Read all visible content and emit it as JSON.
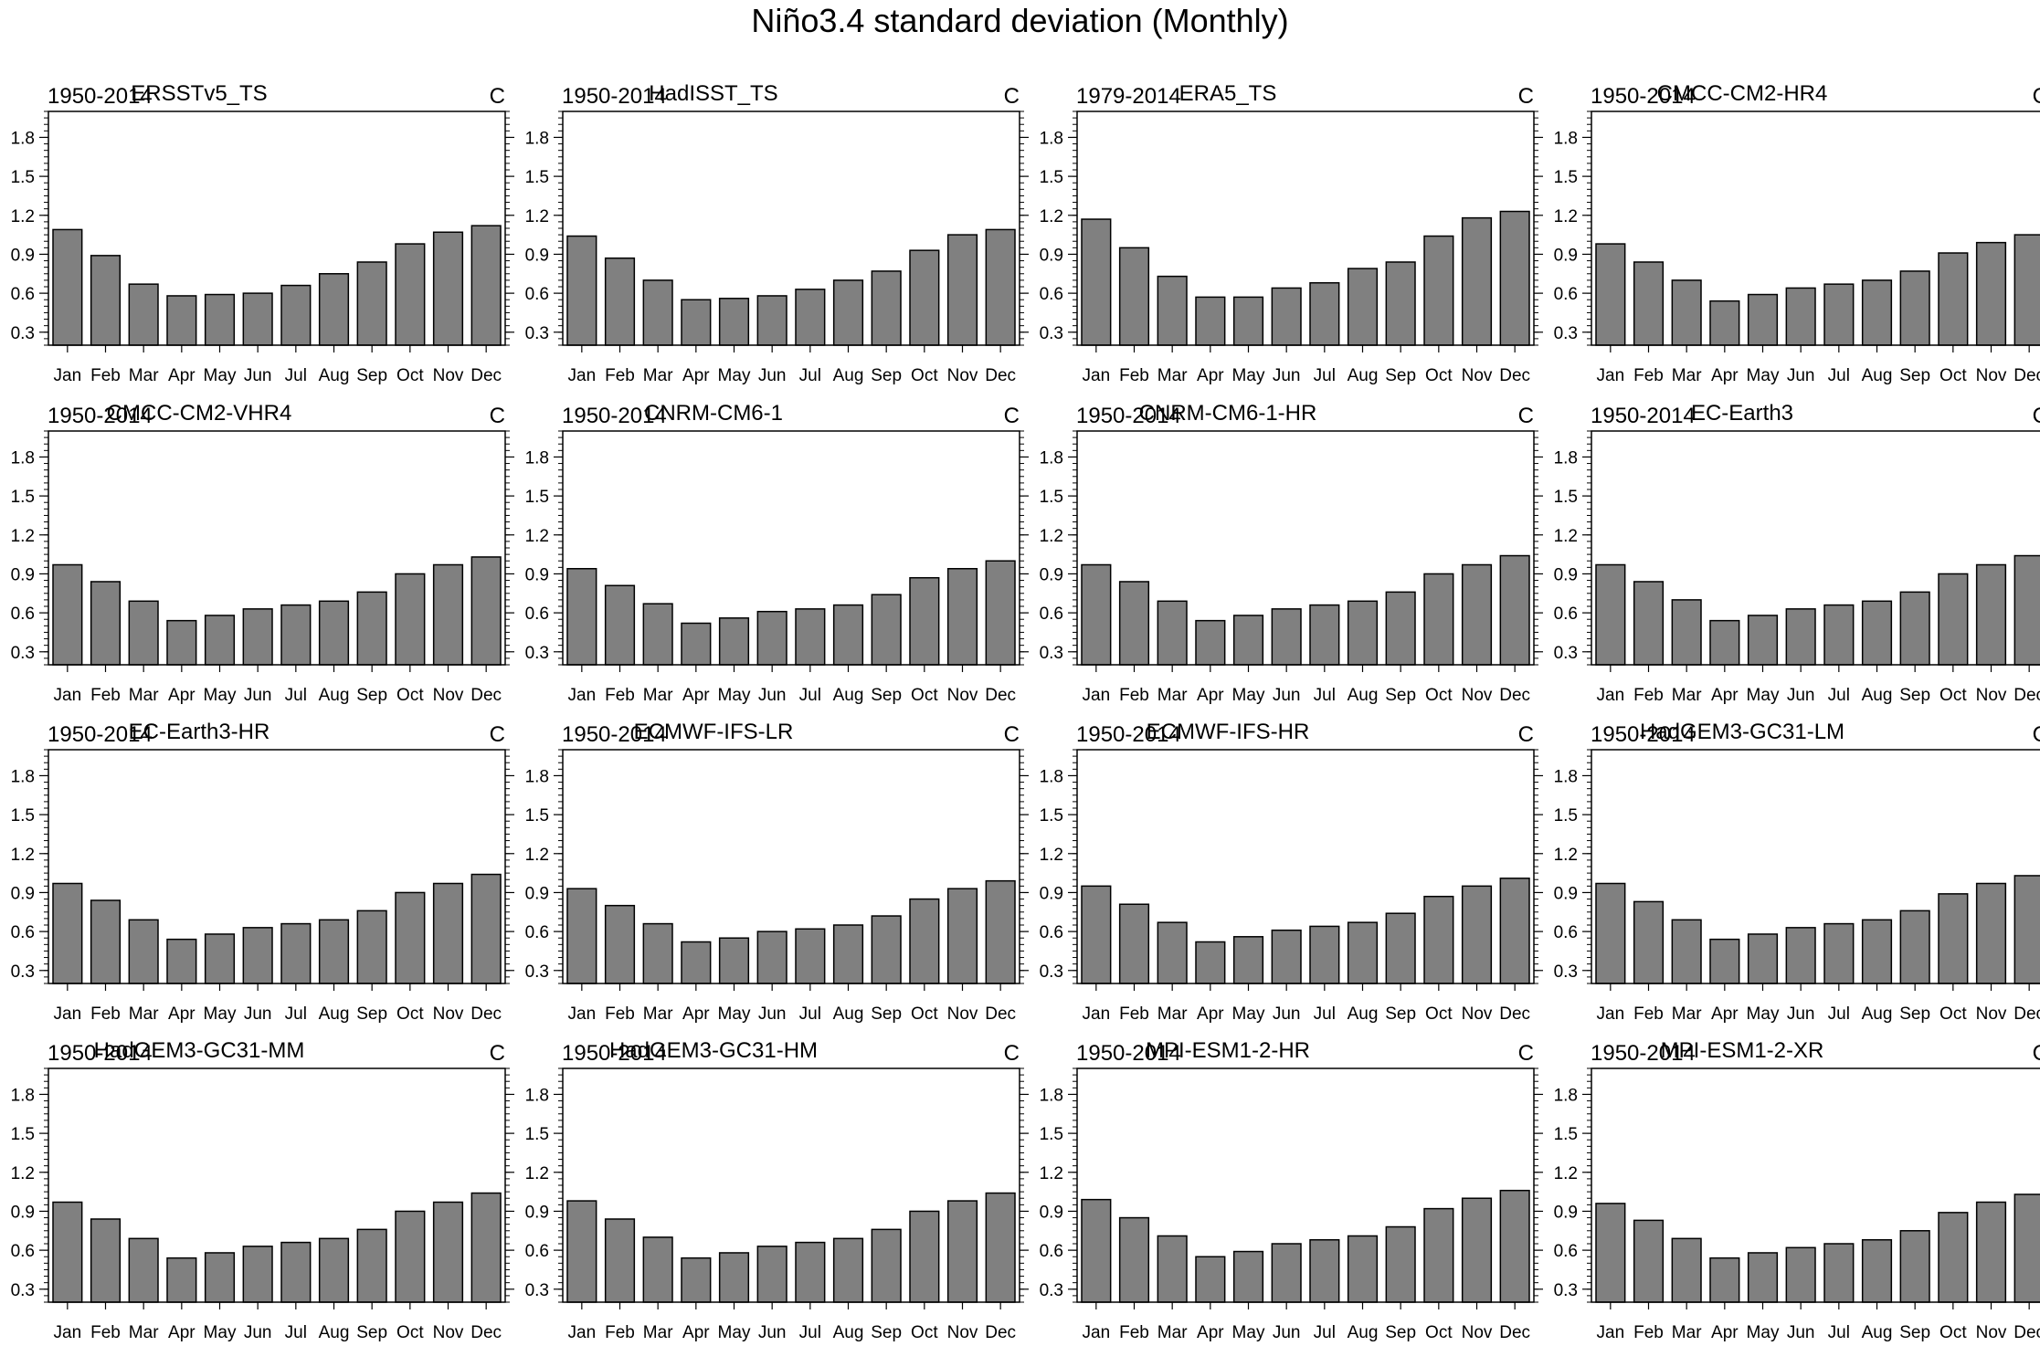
{
  "title": "Niño3.4 standard deviation (Monthly)",
  "style": {
    "bar_fill": "#808080",
    "bar_stroke": "#000000"
  },
  "chart_data": [
    {
      "type": "bar",
      "left_label": "1950-2014",
      "title": "ERSSTv5_TS",
      "units": "C",
      "categories": [
        "Jan",
        "Feb",
        "Mar",
        "Apr",
        "May",
        "Jun",
        "Jul",
        "Aug",
        "Sep",
        "Oct",
        "Nov",
        "Dec"
      ],
      "values": [
        1.09,
        0.89,
        0.67,
        0.58,
        0.59,
        0.6,
        0.66,
        0.75,
        0.84,
        0.98,
        1.07,
        1.12
      ],
      "yticks": [
        0.3,
        0.6,
        0.9,
        1.2,
        1.5,
        1.8
      ],
      "ylim": [
        0.2,
        2.0
      ]
    },
    {
      "type": "bar",
      "left_label": "1950-2014",
      "title": "HadISST_TS",
      "units": "C",
      "categories": [
        "Jan",
        "Feb",
        "Mar",
        "Apr",
        "May",
        "Jun",
        "Jul",
        "Aug",
        "Sep",
        "Oct",
        "Nov",
        "Dec"
      ],
      "values": [
        1.04,
        0.87,
        0.7,
        0.55,
        0.56,
        0.58,
        0.63,
        0.7,
        0.77,
        0.93,
        1.05,
        1.09
      ],
      "yticks": [
        0.3,
        0.6,
        0.9,
        1.2,
        1.5,
        1.8
      ],
      "ylim": [
        0.2,
        2.0
      ]
    },
    {
      "type": "bar",
      "left_label": "1979-2014",
      "title": "ERA5_TS",
      "units": "C",
      "categories": [
        "Jan",
        "Feb",
        "Mar",
        "Apr",
        "May",
        "Jun",
        "Jul",
        "Aug",
        "Sep",
        "Oct",
        "Nov",
        "Dec"
      ],
      "values": [
        1.17,
        0.95,
        0.73,
        0.57,
        0.57,
        0.64,
        0.68,
        0.79,
        0.84,
        1.04,
        1.18,
        1.23
      ],
      "yticks": [
        0.3,
        0.6,
        0.9,
        1.2,
        1.5,
        1.8
      ],
      "ylim": [
        0.2,
        2.0
      ]
    },
    {
      "type": "bar",
      "left_label": "1950-2014",
      "title": "CMCC-CM2-HR4",
      "units": "C",
      "categories": [
        "Jan",
        "Feb",
        "Mar",
        "Apr",
        "May",
        "Jun",
        "Jul",
        "Aug",
        "Sep",
        "Oct",
        "Nov",
        "Dec"
      ],
      "values": [
        0.98,
        0.84,
        0.7,
        0.54,
        0.59,
        0.64,
        0.67,
        0.7,
        0.77,
        0.91,
        0.99,
        1.05
      ],
      "yticks": [
        0.3,
        0.6,
        0.9,
        1.2,
        1.5,
        1.8
      ],
      "ylim": [
        0.2,
        2.0
      ]
    },
    {
      "type": "bar",
      "left_label": "1950-2014",
      "title": "CMCC-CM2-VHR4",
      "units": "C",
      "categories": [
        "Jan",
        "Feb",
        "Mar",
        "Apr",
        "May",
        "Jun",
        "Jul",
        "Aug",
        "Sep",
        "Oct",
        "Nov",
        "Dec"
      ],
      "values": [
        0.97,
        0.84,
        0.69,
        0.54,
        0.58,
        0.63,
        0.66,
        0.69,
        0.76,
        0.9,
        0.97,
        1.03
      ],
      "yticks": [
        0.3,
        0.6,
        0.9,
        1.2,
        1.5,
        1.8
      ],
      "ylim": [
        0.2,
        2.0
      ]
    },
    {
      "type": "bar",
      "left_label": "1950-2014",
      "title": "CNRM-CM6-1",
      "units": "C",
      "categories": [
        "Jan",
        "Feb",
        "Mar",
        "Apr",
        "May",
        "Jun",
        "Jul",
        "Aug",
        "Sep",
        "Oct",
        "Nov",
        "Dec"
      ],
      "values": [
        0.94,
        0.81,
        0.67,
        0.52,
        0.56,
        0.61,
        0.63,
        0.66,
        0.74,
        0.87,
        0.94,
        1.0
      ],
      "yticks": [
        0.3,
        0.6,
        0.9,
        1.2,
        1.5,
        1.8
      ],
      "ylim": [
        0.2,
        2.0
      ]
    },
    {
      "type": "bar",
      "left_label": "1950-2014",
      "title": "CNRM-CM6-1-HR",
      "units": "C",
      "categories": [
        "Jan",
        "Feb",
        "Mar",
        "Apr",
        "May",
        "Jun",
        "Jul",
        "Aug",
        "Sep",
        "Oct",
        "Nov",
        "Dec"
      ],
      "values": [
        0.97,
        0.84,
        0.69,
        0.54,
        0.58,
        0.63,
        0.66,
        0.69,
        0.76,
        0.9,
        0.97,
        1.04
      ],
      "yticks": [
        0.3,
        0.6,
        0.9,
        1.2,
        1.5,
        1.8
      ],
      "ylim": [
        0.2,
        2.0
      ]
    },
    {
      "type": "bar",
      "left_label": "1950-2014",
      "title": "EC-Earth3",
      "units": "C",
      "categories": [
        "Jan",
        "Feb",
        "Mar",
        "Apr",
        "May",
        "Jun",
        "Jul",
        "Aug",
        "Sep",
        "Oct",
        "Nov",
        "Dec"
      ],
      "values": [
        0.97,
        0.84,
        0.7,
        0.54,
        0.58,
        0.63,
        0.66,
        0.69,
        0.76,
        0.9,
        0.97,
        1.04
      ],
      "yticks": [
        0.3,
        0.6,
        0.9,
        1.2,
        1.5,
        1.8
      ],
      "ylim": [
        0.2,
        2.0
      ]
    },
    {
      "type": "bar",
      "left_label": "1950-2014",
      "title": "EC-Earth3-HR",
      "units": "C",
      "categories": [
        "Jan",
        "Feb",
        "Mar",
        "Apr",
        "May",
        "Jun",
        "Jul",
        "Aug",
        "Sep",
        "Oct",
        "Nov",
        "Dec"
      ],
      "values": [
        0.97,
        0.84,
        0.69,
        0.54,
        0.58,
        0.63,
        0.66,
        0.69,
        0.76,
        0.9,
        0.97,
        1.04
      ],
      "yticks": [
        0.3,
        0.6,
        0.9,
        1.2,
        1.5,
        1.8
      ],
      "ylim": [
        0.2,
        2.0
      ]
    },
    {
      "type": "bar",
      "left_label": "1950-2014",
      "title": "ECMWF-IFS-LR",
      "units": "C",
      "categories": [
        "Jan",
        "Feb",
        "Mar",
        "Apr",
        "May",
        "Jun",
        "Jul",
        "Aug",
        "Sep",
        "Oct",
        "Nov",
        "Dec"
      ],
      "values": [
        0.93,
        0.8,
        0.66,
        0.52,
        0.55,
        0.6,
        0.62,
        0.65,
        0.72,
        0.85,
        0.93,
        0.99
      ],
      "yticks": [
        0.3,
        0.6,
        0.9,
        1.2,
        1.5,
        1.8
      ],
      "ylim": [
        0.2,
        2.0
      ]
    },
    {
      "type": "bar",
      "left_label": "1950-2014",
      "title": "ECMWF-IFS-HR",
      "units": "C",
      "categories": [
        "Jan",
        "Feb",
        "Mar",
        "Apr",
        "May",
        "Jun",
        "Jul",
        "Aug",
        "Sep",
        "Oct",
        "Nov",
        "Dec"
      ],
      "values": [
        0.95,
        0.81,
        0.67,
        0.52,
        0.56,
        0.61,
        0.64,
        0.67,
        0.74,
        0.87,
        0.95,
        1.01
      ],
      "yticks": [
        0.3,
        0.6,
        0.9,
        1.2,
        1.5,
        1.8
      ],
      "ylim": [
        0.2,
        2.0
      ]
    },
    {
      "type": "bar",
      "left_label": "1950-2014",
      "title": "HadGEM3-GC31-LM",
      "units": "C",
      "categories": [
        "Jan",
        "Feb",
        "Mar",
        "Apr",
        "May",
        "Jun",
        "Jul",
        "Aug",
        "Sep",
        "Oct",
        "Nov",
        "Dec"
      ],
      "values": [
        0.97,
        0.83,
        0.69,
        0.54,
        0.58,
        0.63,
        0.66,
        0.69,
        0.76,
        0.89,
        0.97,
        1.03
      ],
      "yticks": [
        0.3,
        0.6,
        0.9,
        1.2,
        1.5,
        1.8
      ],
      "ylim": [
        0.2,
        2.0
      ]
    },
    {
      "type": "bar",
      "left_label": "1950-2014",
      "title": "HadGEM3-GC31-MM",
      "units": "C",
      "categories": [
        "Jan",
        "Feb",
        "Mar",
        "Apr",
        "May",
        "Jun",
        "Jul",
        "Aug",
        "Sep",
        "Oct",
        "Nov",
        "Dec"
      ],
      "values": [
        0.97,
        0.84,
        0.69,
        0.54,
        0.58,
        0.63,
        0.66,
        0.69,
        0.76,
        0.9,
        0.97,
        1.04
      ],
      "yticks": [
        0.3,
        0.6,
        0.9,
        1.2,
        1.5,
        1.8
      ],
      "ylim": [
        0.2,
        2.0
      ]
    },
    {
      "type": "bar",
      "left_label": "1950-2014",
      "title": "HadGEM3-GC31-HM",
      "units": "C",
      "categories": [
        "Jan",
        "Feb",
        "Mar",
        "Apr",
        "May",
        "Jun",
        "Jul",
        "Aug",
        "Sep",
        "Oct",
        "Nov",
        "Dec"
      ],
      "values": [
        0.98,
        0.84,
        0.7,
        0.54,
        0.58,
        0.63,
        0.66,
        0.69,
        0.76,
        0.9,
        0.98,
        1.04
      ],
      "yticks": [
        0.3,
        0.6,
        0.9,
        1.2,
        1.5,
        1.8
      ],
      "ylim": [
        0.2,
        2.0
      ]
    },
    {
      "type": "bar",
      "left_label": "1950-2014",
      "title": "MPI-ESM1-2-HR",
      "units": "C",
      "categories": [
        "Jan",
        "Feb",
        "Mar",
        "Apr",
        "May",
        "Jun",
        "Jul",
        "Aug",
        "Sep",
        "Oct",
        "Nov",
        "Dec"
      ],
      "values": [
        0.99,
        0.85,
        0.71,
        0.55,
        0.59,
        0.65,
        0.68,
        0.71,
        0.78,
        0.92,
        1.0,
        1.06
      ],
      "yticks": [
        0.3,
        0.6,
        0.9,
        1.2,
        1.5,
        1.8
      ],
      "ylim": [
        0.2,
        2.0
      ]
    },
    {
      "type": "bar",
      "left_label": "1950-2014",
      "title": "MPI-ESM1-2-XR",
      "units": "C",
      "categories": [
        "Jan",
        "Feb",
        "Mar",
        "Apr",
        "May",
        "Jun",
        "Jul",
        "Aug",
        "Sep",
        "Oct",
        "Nov",
        "Dec"
      ],
      "values": [
        0.96,
        0.83,
        0.69,
        0.54,
        0.58,
        0.62,
        0.65,
        0.68,
        0.75,
        0.89,
        0.97,
        1.03
      ],
      "yticks": [
        0.3,
        0.6,
        0.9,
        1.2,
        1.5,
        1.8
      ],
      "ylim": [
        0.2,
        2.0
      ]
    }
  ]
}
